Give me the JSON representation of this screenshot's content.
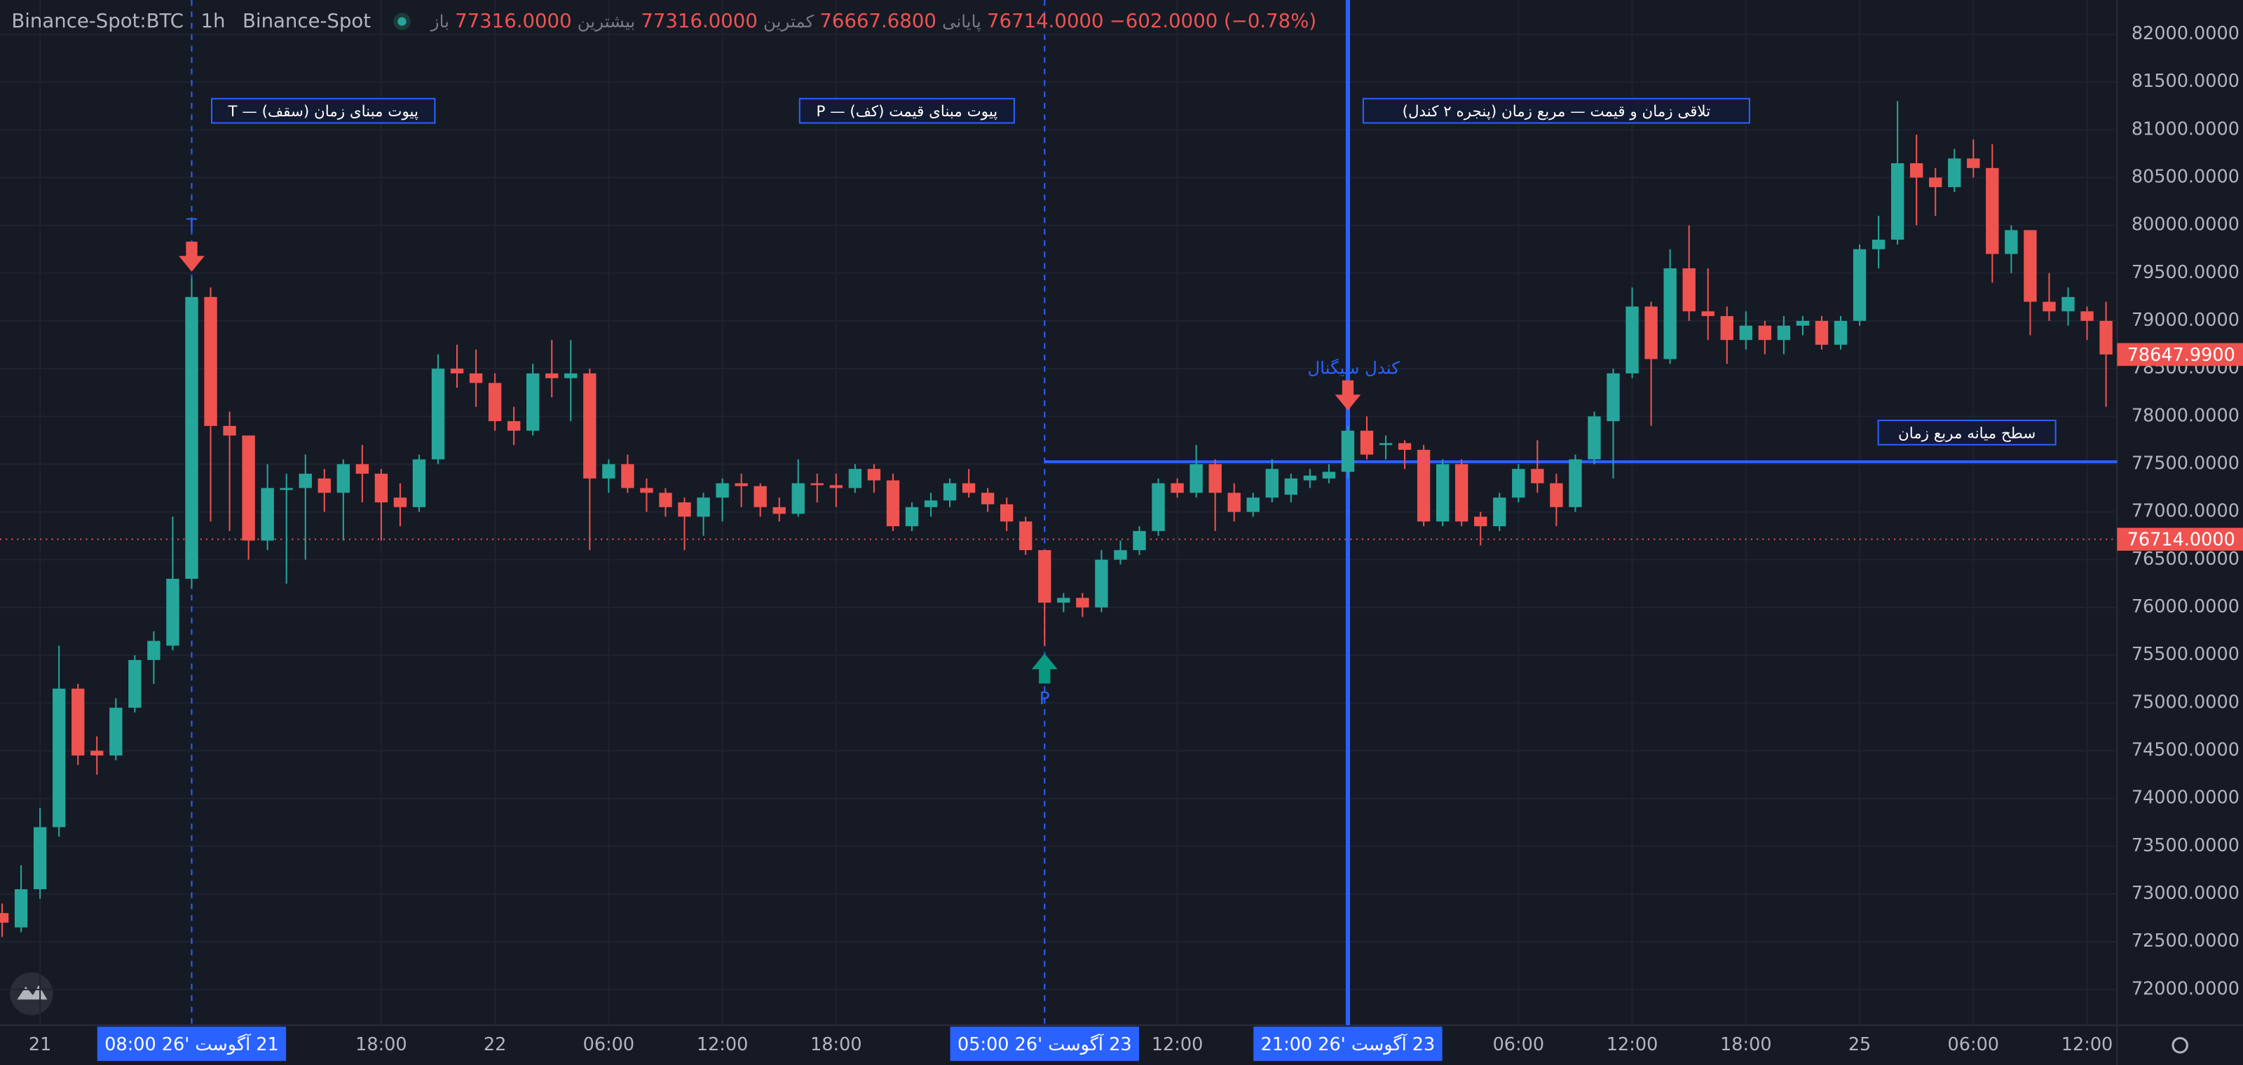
{
  "header": {
    "symbol": "Binance-Spot:BTC",
    "interval": "1h",
    "exchange": "Binance-Spot",
    "fields": [
      {
        "label": "باز",
        "value": "77316.0000"
      },
      {
        "label": "بیشترین",
        "value": "77316.0000"
      },
      {
        "label": "کمترین",
        "value": "76667.6800"
      },
      {
        "label": "پایانی",
        "value": "76714.0000"
      }
    ],
    "change": "−602.0000 (−0.78%)"
  },
  "chart_data": {
    "type": "candlestick",
    "categories": [
      null,
      null,
      "21",
      null,
      null,
      null,
      null,
      null,
      null,
      null,
      null,
      null,
      null,
      null,
      null,
      null,
      null,
      null,
      null,
      null,
      "18:00",
      null,
      null,
      null,
      null,
      null,
      "22",
      null,
      null,
      null,
      null,
      null,
      "06:00",
      null,
      null,
      null,
      null,
      null,
      "12:00",
      null,
      null,
      null,
      null,
      null,
      "18:00",
      null,
      null,
      null,
      null,
      null,
      null,
      null,
      null,
      null,
      null,
      null,
      null,
      null,
      null,
      null,
      null,
      null,
      "12:00",
      null,
      null,
      null,
      null,
      null,
      null,
      null,
      null,
      null,
      null,
      null,
      null,
      null,
      null,
      null,
      null,
      null,
      "06:00",
      null,
      null,
      null,
      null,
      null,
      "12:00",
      null,
      null,
      null,
      null,
      null,
      "18:00",
      null,
      null,
      null,
      null,
      null,
      "25",
      null,
      null,
      null,
      null,
      null,
      "06:00",
      null,
      null,
      null,
      null,
      null,
      "12:00",
      null
    ],
    "open": [
      72800,
      72650,
      73050,
      73700,
      75150,
      74500,
      74450,
      74950,
      75450,
      75600,
      76300,
      79250,
      77900,
      77800,
      76700,
      77230,
      77250,
      77350,
      77200,
      77500,
      77400,
      77150,
      77050,
      77550,
      78500,
      78450,
      78350,
      77950,
      77850,
      78450,
      78400,
      78450,
      77350,
      77500,
      77250,
      77200,
      77100,
      76950,
      77150,
      77300,
      77270,
      77050,
      76980,
      77300,
      77280,
      77250,
      77450,
      77330,
      76850,
      77050,
      77120,
      77300,
      77200,
      77080,
      76900,
      76600,
      76050,
      76100,
      76000,
      76500,
      76600,
      76800,
      77300,
      77200,
      77500,
      77200,
      77000,
      77150,
      77180,
      77330,
      77350,
      77420,
      77850,
      77700,
      77720,
      77650,
      76900,
      77500,
      76950,
      76850,
      77150,
      77450,
      77300,
      77050,
      77550,
      77950,
      78450,
      79150,
      78600,
      79550,
      79100,
      79050,
      78800,
      78950,
      78800,
      78950,
      79000,
      78750,
      79000,
      79750,
      79850,
      80650,
      80500,
      80400,
      80700,
      80600,
      79700,
      79950,
      79200,
      79100,
      79100,
      79000
    ],
    "high": [
      72900,
      73300,
      73900,
      75600,
      75200,
      74650,
      75050,
      75500,
      75750,
      76950,
      79450,
      79350,
      78050,
      77800,
      77500,
      77400,
      77600,
      77450,
      77550,
      77700,
      77450,
      77300,
      77600,
      78650,
      78750,
      78700,
      78450,
      78100,
      78550,
      78800,
      78800,
      78500,
      77550,
      77600,
      77350,
      77250,
      77150,
      77200,
      77350,
      77400,
      77300,
      77150,
      77550,
      77400,
      77400,
      77500,
      77500,
      77400,
      77100,
      77200,
      77350,
      77450,
      77250,
      77150,
      76950,
      76600,
      76150,
      76150,
      76600,
      76700,
      76850,
      77350,
      77350,
      77700,
      77550,
      77300,
      77200,
      77550,
      77400,
      77450,
      77500,
      77900,
      78000,
      77800,
      77750,
      77700,
      77550,
      77550,
      77000,
      77200,
      77500,
      77750,
      77400,
      77600,
      78050,
      78500,
      79350,
      79200,
      79750,
      80000,
      79550,
      79150,
      79100,
      79000,
      79050,
      79050,
      79050,
      79050,
      79800,
      80100,
      81300,
      80950,
      80600,
      80800,
      80900,
      80850,
      80000,
      79950,
      79500,
      79350,
      79150,
      79200
    ],
    "low": [
      72550,
      72600,
      72950,
      73600,
      74350,
      74250,
      74400,
      74900,
      75200,
      75550,
      76200,
      76900,
      76800,
      76500,
      76600,
      76250,
      76500,
      77000,
      76700,
      77100,
      76700,
      76850,
      77000,
      77500,
      78300,
      78100,
      77850,
      77700,
      77800,
      78200,
      77950,
      76600,
      77200,
      77200,
      77000,
      76950,
      76600,
      76750,
      76900,
      77050,
      76950,
      76900,
      76950,
      77100,
      77050,
      77200,
      77200,
      76800,
      76800,
      76950,
      77050,
      77150,
      77000,
      76800,
      76550,
      75600,
      75950,
      75900,
      75950,
      76450,
      76550,
      76750,
      77150,
      77150,
      76800,
      76900,
      76950,
      77100,
      77100,
      77250,
      77300,
      77350,
      77550,
      77550,
      77450,
      76850,
      76850,
      76850,
      76650,
      76800,
      77100,
      77200,
      76850,
      77000,
      77500,
      77350,
      78400,
      77900,
      78550,
      79000,
      78800,
      78550,
      78700,
      78650,
      78650,
      78850,
      78700,
      78700,
      78950,
      79550,
      79800,
      80000,
      80100,
      80350,
      80500,
      79400,
      79500,
      78850,
      79000,
      78950,
      78800,
      78100
    ],
    "close": [
      72700,
      73050,
      73700,
      75150,
      74450,
      74450,
      74950,
      75450,
      75650,
      76300,
      79250,
      77900,
      77800,
      76700,
      77250,
      77250,
      77400,
      77200,
      77500,
      77400,
      77100,
      77050,
      77550,
      78500,
      78450,
      78350,
      77950,
      77850,
      78450,
      78400,
      78450,
      77350,
      77500,
      77250,
      77200,
      77050,
      76950,
      77150,
      77300,
      77270,
      77050,
      76980,
      77300,
      77280,
      77250,
      77450,
      77330,
      76850,
      77050,
      77120,
      77300,
      77200,
      77080,
      76900,
      76600,
      76050,
      76100,
      76000,
      76500,
      76600,
      76800,
      77300,
      77200,
      77500,
      77200,
      77000,
      77150,
      77450,
      77350,
      77380,
      77420,
      77850,
      77600,
      77720,
      77650,
      76900,
      77500,
      76900,
      76850,
      77150,
      77450,
      77300,
      77050,
      77550,
      78000,
      78450,
      79150,
      78600,
      79550,
      79100,
      79050,
      78800,
      78950,
      78800,
      78950,
      79000,
      78750,
      79000,
      79750,
      79850,
      80650,
      80500,
      80400,
      80700,
      80600,
      79700,
      79950,
      79200,
      79100,
      79250,
      79000,
      78648
    ],
    "up_color": "#26a69a",
    "down_color": "#ef5350",
    "ylim": [
      71626,
      82359
    ],
    "yticks": [
      {
        "value": 72000,
        "label": "72000.0000"
      },
      {
        "value": 72500,
        "label": "72500.0000"
      },
      {
        "value": 73000,
        "label": "73000.0000"
      },
      {
        "value": 73500,
        "label": "73500.0000"
      },
      {
        "value": 74000,
        "label": "74000.0000"
      },
      {
        "value": 74500,
        "label": "74500.0000"
      },
      {
        "value": 75000,
        "label": "75000.0000"
      },
      {
        "value": 75500,
        "label": "75500.0000"
      },
      {
        "value": 76000,
        "label": "76000.0000"
      },
      {
        "value": 76500,
        "label": "76500.0000"
      },
      {
        "value": 77000,
        "label": "77000.0000"
      },
      {
        "value": 77500,
        "label": "77500.0000"
      },
      {
        "value": 78000,
        "label": "78000.0000"
      },
      {
        "value": 78500,
        "label": "78500.0000"
      },
      {
        "value": 79000,
        "label": "79000.0000"
      },
      {
        "value": 79500,
        "label": "79500.0000"
      },
      {
        "value": 80000,
        "label": "80000.0000"
      },
      {
        "value": 80500,
        "label": "80500.0000"
      },
      {
        "value": 81000,
        "label": "81000.0000"
      },
      {
        "value": 81500,
        "label": "81500.0000"
      },
      {
        "value": 82000,
        "label": "82000.0000"
      }
    ],
    "grid": true,
    "level": 77525,
    "price_tags": [
      {
        "value": 78647.99,
        "label": "78647.9900"
      },
      {
        "value": 76714,
        "label": "76714.0000"
      }
    ],
    "annotations": [
      "T — پیوت مبنای زمان (سقف)",
      "P — پیوت مبنای قیمت (کف)",
      "تلاقی زمان و قیمت — مربع زمان (پنجره ۲ کندل)",
      "سطح میانه مربع زمان"
    ],
    "markers": [
      "T",
      "P",
      "کندل سیگنال"
    ],
    "crosshair_labels": [
      "21 آگوست '26 08:00",
      "23 آگوست '26 05:00",
      "23 آگوست '26 21:00"
    ]
  }
}
